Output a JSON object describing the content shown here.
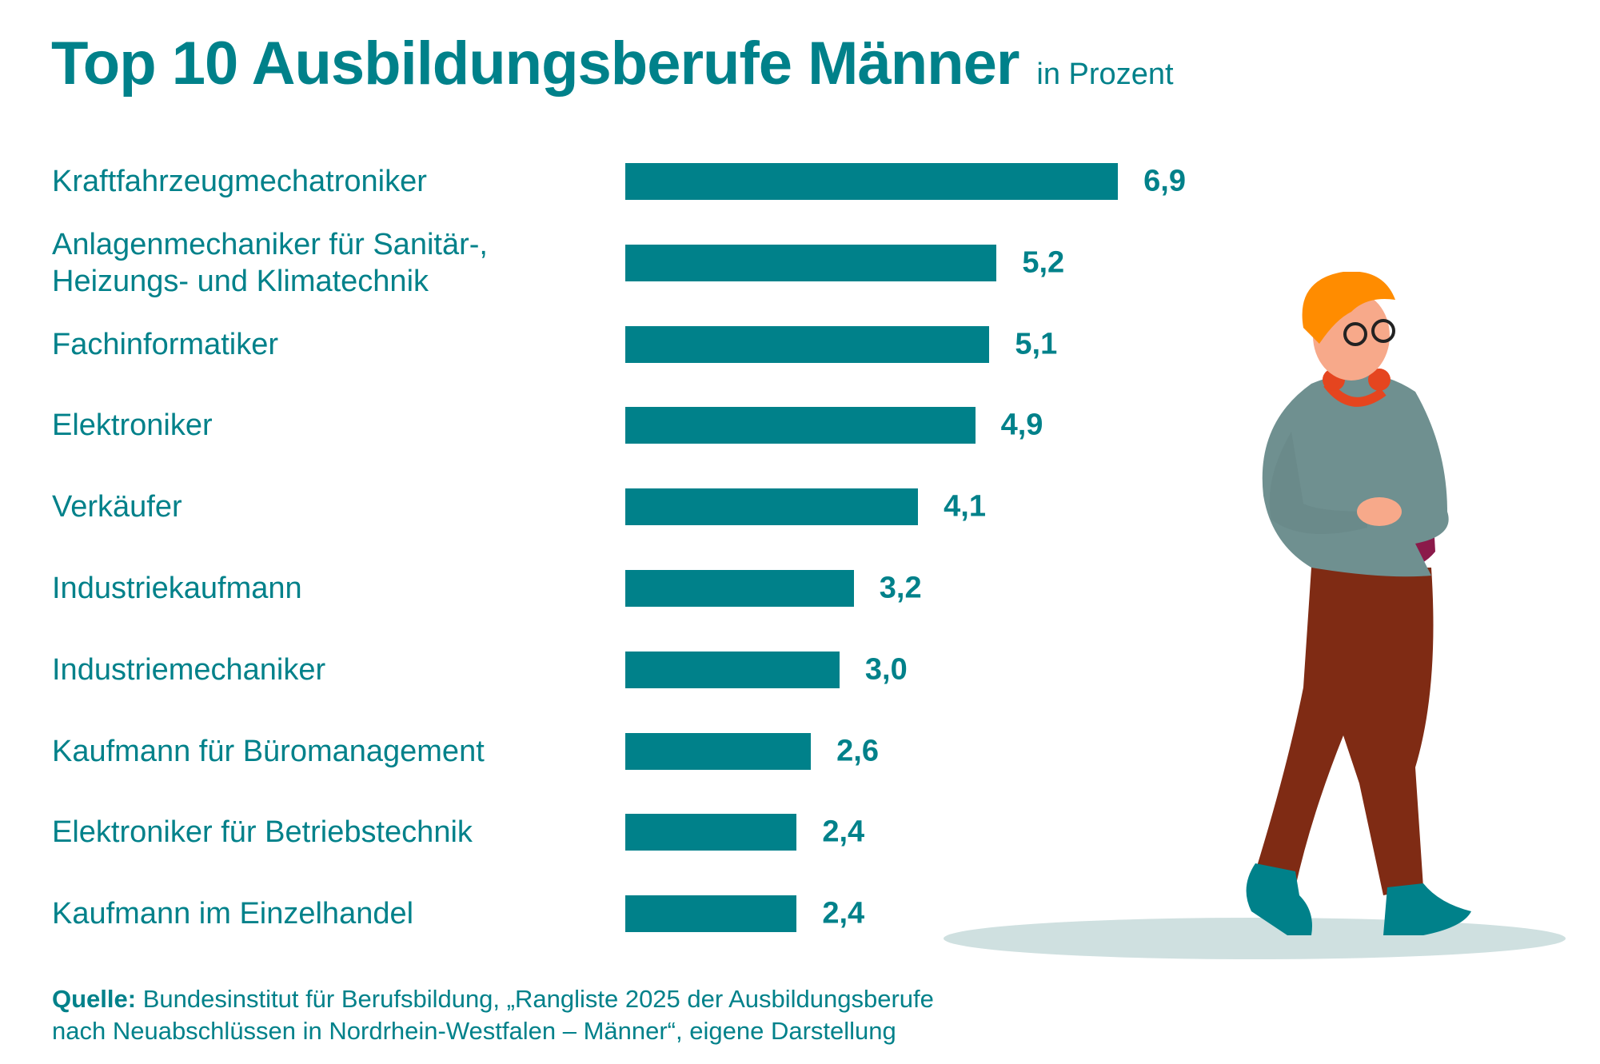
{
  "colors": {
    "bar": "#00818a",
    "text": "#00818a",
    "shadow": "#cfe0e0"
  },
  "chart_data": {
    "type": "bar",
    "orientation": "horizontal",
    "title": "Top 10 Ausbildungsberufe Männer",
    "subtitle": "in Prozent",
    "categories": [
      "Kraftfahrzeugmechatroniker",
      "Anlagenmechaniker für Sanitär-,\nHeizungs- und Klimatechnik",
      "Fachinformatiker",
      "Elektroniker",
      "Verkäufer",
      "Industriekaufmann",
      "Industriemechaniker",
      "Kaufmann für Büromanagement",
      "Elektroniker für Betriebstechnik",
      "Kaufmann im Einzelhandel"
    ],
    "values": [
      6.9,
      5.2,
      5.1,
      4.9,
      4.1,
      3.2,
      3.0,
      2.6,
      2.4,
      2.4
    ],
    "value_labels": [
      "6,9",
      "5,2",
      "5,1",
      "4,9",
      "4,1",
      "3,2",
      "3,0",
      "2,6",
      "2,4",
      "2,4"
    ],
    "grid": false,
    "axes_visible": false
  },
  "footer": {
    "source_label": "Quelle:",
    "source_text_line1": "Bundesinstitut für Berufsbildung, „Rangliste 2025 der Ausbildungsberufe",
    "source_text_line2": "nach Neuabschlüssen in Nordrhein-Westfalen – Männer“, eigene Darstellung"
  },
  "illustration": "walking-young-man-with-headphones-and-backpack"
}
